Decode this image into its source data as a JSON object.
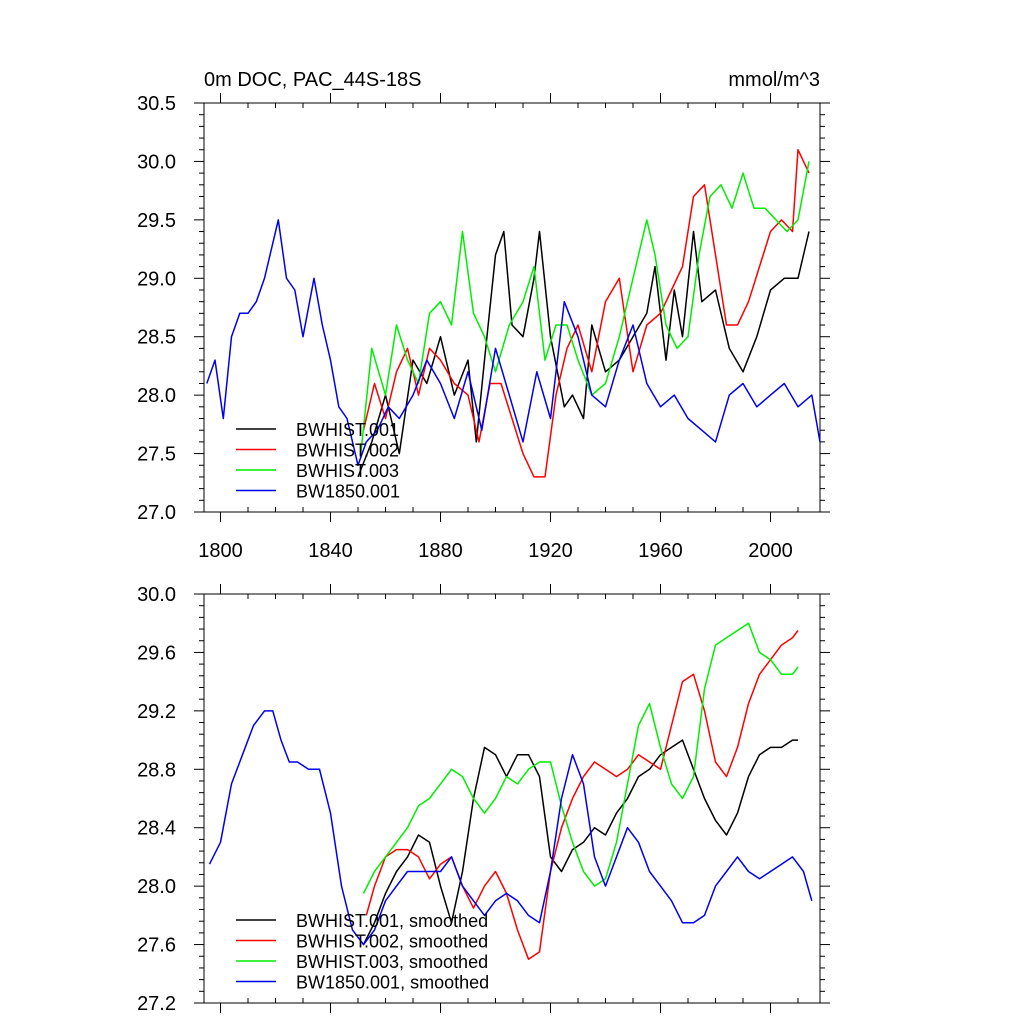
{
  "chart_data": [
    {
      "type": "line",
      "title": "0m DOC, PAC_44S-18S",
      "units": "mmol/m^3",
      "xlabel": "",
      "ylabel": "",
      "xlim": [
        1794,
        2018
      ],
      "ylim": [
        27.0,
        30.5
      ],
      "x_ticks": [
        1800,
        1840,
        1880,
        1920,
        1960,
        2000
      ],
      "x_tick_labels": [
        "1800",
        "1840",
        "1880",
        "1920",
        "1960",
        "2000"
      ],
      "y_ticks": [
        27.0,
        27.5,
        28.0,
        28.5,
        29.0,
        29.5,
        30.0,
        30.5
      ],
      "y_tick_labels": [
        "27.0",
        "27.5",
        "28.0",
        "28.5",
        "29.0",
        "29.5",
        "30.0",
        "30.5"
      ],
      "legend_position": "bottom-left",
      "series": [
        {
          "name": "BWHIST.001",
          "color": "#000000",
          "x": [
            1850,
            1855,
            1860,
            1865,
            1870,
            1875,
            1880,
            1885,
            1890,
            1893,
            1896,
            1900,
            1903,
            1906,
            1910,
            1914,
            1916,
            1920,
            1925,
            1928,
            1932,
            1935,
            1940,
            1945,
            1950,
            1955,
            1958,
            1962,
            1965,
            1968,
            1972,
            1975,
            1980,
            1985,
            1990,
            1995,
            2000,
            2005,
            2010,
            2014
          ],
          "values": [
            27.3,
            27.6,
            28.0,
            27.5,
            28.3,
            28.1,
            28.5,
            28.0,
            28.3,
            27.6,
            28.3,
            29.2,
            29.4,
            28.6,
            28.5,
            29.0,
            29.4,
            28.5,
            27.9,
            28.0,
            27.8,
            28.6,
            28.2,
            28.3,
            28.5,
            28.7,
            29.1,
            28.3,
            28.9,
            28.5,
            29.4,
            28.8,
            28.9,
            28.4,
            28.2,
            28.5,
            28.9,
            29.0,
            29.0,
            29.4
          ]
        },
        {
          "name": "BWHIST.002",
          "color": "#ff0000",
          "x": [
            1852,
            1856,
            1860,
            1864,
            1868,
            1872,
            1876,
            1880,
            1885,
            1890,
            1894,
            1898,
            1902,
            1906,
            1910,
            1914,
            1918,
            1922,
            1926,
            1930,
            1935,
            1940,
            1945,
            1950,
            1955,
            1960,
            1964,
            1968,
            1972,
            1976,
            1980,
            1984,
            1988,
            1992,
            1996,
            2000,
            2004,
            2008,
            2010,
            2014
          ],
          "values": [
            27.7,
            28.1,
            27.8,
            28.2,
            28.4,
            28.0,
            28.4,
            28.3,
            28.1,
            28.0,
            27.6,
            28.1,
            28.1,
            27.8,
            27.5,
            27.3,
            27.3,
            28.0,
            28.4,
            28.6,
            28.2,
            28.8,
            29.0,
            28.2,
            28.6,
            28.7,
            28.9,
            29.1,
            29.7,
            29.8,
            29.2,
            28.6,
            28.6,
            28.8,
            29.1,
            29.4,
            29.5,
            29.4,
            30.1,
            29.9
          ]
        },
        {
          "name": "BWHIST.003",
          "color": "#00ee00",
          "x": [
            1851,
            1855,
            1860,
            1864,
            1868,
            1872,
            1876,
            1880,
            1884,
            1888,
            1892,
            1896,
            1900,
            1905,
            1910,
            1914,
            1918,
            1922,
            1926,
            1930,
            1935,
            1940,
            1945,
            1950,
            1955,
            1958,
            1962,
            1966,
            1970,
            1974,
            1978,
            1982,
            1986,
            1990,
            1994,
            1998,
            2002,
            2006,
            2010,
            2014
          ],
          "values": [
            27.5,
            28.4,
            28.0,
            28.6,
            28.3,
            28.1,
            28.7,
            28.8,
            28.6,
            29.4,
            28.7,
            28.5,
            28.2,
            28.6,
            28.8,
            29.1,
            28.3,
            28.6,
            28.6,
            28.3,
            28.0,
            28.1,
            28.5,
            29.0,
            29.5,
            29.2,
            28.6,
            28.4,
            28.5,
            29.2,
            29.7,
            29.8,
            29.6,
            29.9,
            29.6,
            29.6,
            29.5,
            29.4,
            29.5,
            30.0
          ]
        },
        {
          "name": "BW1850.001",
          "color": "#0000ee",
          "x": [
            1795,
            1798,
            1801,
            1804,
            1807,
            1810,
            1813,
            1816,
            1819,
            1821,
            1824,
            1827,
            1830,
            1834,
            1837,
            1840,
            1843,
            1846,
            1850,
            1853,
            1857,
            1861,
            1865,
            1870,
            1875,
            1880,
            1885,
            1890,
            1895,
            1900,
            1905,
            1910,
            1915,
            1920,
            1925,
            1930,
            1935,
            1940,
            1945,
            1950,
            1955,
            1960,
            1965,
            1970,
            1975,
            1980,
            1985,
            1990,
            1995,
            2000,
            2005,
            2010,
            2015,
            2018
          ],
          "values": [
            28.1,
            28.3,
            27.8,
            28.5,
            28.7,
            28.7,
            28.8,
            29.0,
            29.3,
            29.5,
            29.0,
            28.9,
            28.5,
            29.0,
            28.6,
            28.3,
            27.9,
            27.8,
            27.4,
            27.6,
            27.7,
            27.9,
            27.8,
            28.0,
            28.3,
            28.1,
            27.8,
            28.2,
            27.7,
            28.4,
            28.0,
            27.6,
            28.2,
            27.8,
            28.8,
            28.5,
            28.0,
            27.9,
            28.3,
            28.6,
            28.1,
            27.9,
            28.0,
            27.8,
            27.7,
            27.6,
            28.0,
            28.1,
            27.9,
            28.0,
            28.1,
            27.9,
            28.0,
            27.6
          ]
        }
      ]
    },
    {
      "type": "line",
      "title": "",
      "xlabel": "",
      "ylabel": "",
      "xlim": [
        1794,
        2018
      ],
      "ylim": [
        27.2,
        30.0
      ],
      "x_ticks": [
        1800,
        1840,
        1880,
        1920,
        1960,
        2000
      ],
      "y_ticks": [
        27.2,
        27.6,
        28.0,
        28.4,
        28.8,
        29.2,
        29.6,
        30.0
      ],
      "y_tick_labels": [
        "27.2",
        "27.6",
        "28.0",
        "28.4",
        "28.8",
        "29.2",
        "29.6",
        "30.0"
      ],
      "legend_position": "bottom-left",
      "series": [
        {
          "name": "BWHIST.001, smoothed",
          "color": "#000000",
          "x": [
            1852,
            1856,
            1860,
            1864,
            1868,
            1872,
            1876,
            1880,
            1884,
            1888,
            1892,
            1896,
            1900,
            1904,
            1908,
            1912,
            1916,
            1920,
            1924,
            1928,
            1932,
            1936,
            1940,
            1944,
            1948,
            1952,
            1956,
            1960,
            1964,
            1968,
            1972,
            1976,
            1980,
            1984,
            1988,
            1992,
            1996,
            2000,
            2004,
            2008,
            2010
          ],
          "values": [
            27.6,
            27.75,
            27.95,
            28.1,
            28.2,
            28.35,
            28.3,
            28.0,
            27.75,
            28.1,
            28.6,
            28.95,
            28.9,
            28.75,
            28.9,
            28.9,
            28.75,
            28.2,
            28.1,
            28.25,
            28.3,
            28.4,
            28.35,
            28.5,
            28.6,
            28.75,
            28.8,
            28.9,
            28.95,
            29.0,
            28.8,
            28.6,
            28.45,
            28.35,
            28.5,
            28.75,
            28.9,
            28.95,
            28.95,
            29.0,
            29.0
          ]
        },
        {
          "name": "BWHIST.002, smoothed",
          "color": "#ff0000",
          "x": [
            1853,
            1856,
            1860,
            1864,
            1868,
            1872,
            1876,
            1880,
            1884,
            1888,
            1892,
            1896,
            1900,
            1904,
            1908,
            1912,
            1916,
            1920,
            1924,
            1928,
            1932,
            1936,
            1940,
            1944,
            1948,
            1952,
            1956,
            1960,
            1964,
            1968,
            1972,
            1976,
            1980,
            1984,
            1988,
            1992,
            1996,
            2000,
            2004,
            2008,
            2010
          ],
          "values": [
            27.8,
            28.0,
            28.2,
            28.25,
            28.25,
            28.2,
            28.05,
            28.15,
            28.2,
            28.0,
            27.85,
            28.0,
            28.1,
            27.95,
            27.7,
            27.5,
            27.55,
            28.1,
            28.4,
            28.6,
            28.75,
            28.85,
            28.8,
            28.75,
            28.8,
            28.9,
            28.85,
            28.8,
            29.1,
            29.4,
            29.45,
            29.2,
            28.85,
            28.75,
            28.95,
            29.25,
            29.45,
            29.55,
            29.65,
            29.7,
            29.75
          ]
        },
        {
          "name": "BWHIST.003, smoothed",
          "color": "#00ee00",
          "x": [
            1852,
            1856,
            1860,
            1864,
            1868,
            1872,
            1876,
            1880,
            1884,
            1888,
            1892,
            1896,
            1900,
            1904,
            1908,
            1912,
            1916,
            1920,
            1924,
            1928,
            1932,
            1936,
            1940,
            1944,
            1948,
            1952,
            1956,
            1960,
            1964,
            1968,
            1972,
            1976,
            1980,
            1984,
            1988,
            1992,
            1996,
            2000,
            2004,
            2008,
            2010
          ],
          "values": [
            27.95,
            28.1,
            28.2,
            28.3,
            28.4,
            28.55,
            28.6,
            28.7,
            28.8,
            28.75,
            28.6,
            28.5,
            28.6,
            28.75,
            28.7,
            28.8,
            28.85,
            28.85,
            28.55,
            28.3,
            28.1,
            28.0,
            28.05,
            28.3,
            28.7,
            29.1,
            29.25,
            28.95,
            28.7,
            28.6,
            28.75,
            29.35,
            29.65,
            29.7,
            29.75,
            29.8,
            29.6,
            29.55,
            29.45,
            29.45,
            29.5
          ]
        },
        {
          "name": "BW1850.001, smoothed",
          "color": "#0000ee",
          "x": [
            1796,
            1800,
            1804,
            1808,
            1812,
            1816,
            1819,
            1822,
            1825,
            1828,
            1832,
            1836,
            1840,
            1844,
            1848,
            1852,
            1856,
            1860,
            1864,
            1868,
            1872,
            1876,
            1880,
            1884,
            1888,
            1892,
            1896,
            1900,
            1904,
            1908,
            1912,
            1916,
            1920,
            1924,
            1928,
            1932,
            1936,
            1940,
            1944,
            1948,
            1952,
            1956,
            1960,
            1964,
            1968,
            1972,
            1976,
            1980,
            1984,
            1988,
            1992,
            1996,
            2000,
            2004,
            2008,
            2012,
            2015
          ],
          "values": [
            28.15,
            28.3,
            28.7,
            28.9,
            29.1,
            29.2,
            29.2,
            29.0,
            28.85,
            28.85,
            28.8,
            28.8,
            28.5,
            28.0,
            27.7,
            27.6,
            27.7,
            27.9,
            28.0,
            28.1,
            28.1,
            28.1,
            28.1,
            28.2,
            28.0,
            27.9,
            27.8,
            27.9,
            27.95,
            27.9,
            27.8,
            27.75,
            28.1,
            28.6,
            28.9,
            28.7,
            28.2,
            28.0,
            28.2,
            28.4,
            28.3,
            28.1,
            28.0,
            27.9,
            27.75,
            27.75,
            27.8,
            28.0,
            28.1,
            28.2,
            28.1,
            28.05,
            28.1,
            28.15,
            28.2,
            28.1,
            27.9
          ]
        }
      ]
    }
  ]
}
